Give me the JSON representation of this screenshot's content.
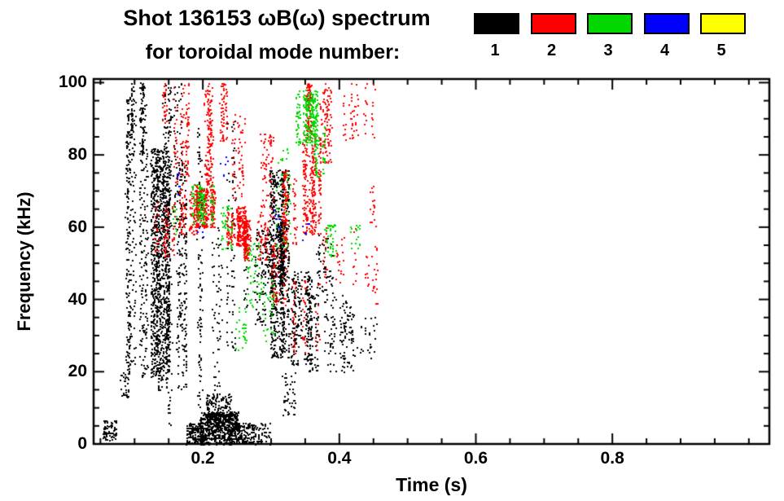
{
  "chart_data": {
    "type": "scatter",
    "title": "Shot 136153 ωB(ω) spectrum",
    "subtitle": "for toroidal mode number:",
    "xlabel": "Time (s)",
    "ylabel": "Frequency (kHz)",
    "xlim": [
      0.04,
      1.03
    ],
    "ylim": [
      0,
      101
    ],
    "grid": false,
    "x_major_ticks": [
      0.2,
      0.4,
      0.6,
      0.8
    ],
    "x_tick_labels": [
      "0.2",
      "0.4",
      "0.6",
      "0.8"
    ],
    "x_minor_step": 0.05,
    "y_major_ticks": [
      0,
      20,
      40,
      60,
      80,
      100
    ],
    "y_tick_labels": [
      "0",
      "20",
      "40",
      "60",
      "80",
      "100"
    ],
    "y_minor_step": 5,
    "legend": {
      "position": "top-right",
      "items": [
        {
          "label": "1",
          "color": "#000000"
        },
        {
          "label": "2",
          "color": "#ff0000"
        },
        {
          "label": "3",
          "color": "#00d800"
        },
        {
          "label": "4",
          "color": "#0000ff"
        },
        {
          "label": "5",
          "color": "#ffff00"
        }
      ]
    },
    "series": [
      {
        "name": "1",
        "color": "#000000",
        "clusters": [
          {
            "t": [
              0.045,
              0.075
            ],
            "f": [
              1,
              7
            ],
            "n": 70,
            "k": 4
          },
          {
            "t": [
              0.078,
              0.092
            ],
            "f": [
              13,
              20
            ],
            "n": 30
          },
          {
            "t": [
              0.085,
              0.105
            ],
            "f": [
              20,
              96
            ],
            "n": 260,
            "k": 5
          },
          {
            "t": [
              0.1,
              0.15
            ],
            "f": [
              18,
              82
            ],
            "n": 1000,
            "k": 14
          },
          {
            "t": [
              0.095,
              0.13
            ],
            "f": [
              80,
              100
            ],
            "n": 130,
            "k": 6
          },
          {
            "t": [
              0.13,
              0.175
            ],
            "f": [
              15,
              78
            ],
            "n": 380,
            "k": 8
          },
          {
            "t": [
              0.14,
              0.168
            ],
            "f": [
              60,
              100
            ],
            "n": 150,
            "k": 5
          },
          {
            "t": [
              0.148,
              0.156
            ],
            "f": [
              5,
              98
            ],
            "n": 70,
            "k": 2
          },
          {
            "t": [
              0.175,
              0.2
            ],
            "f": [
              0,
              6
            ],
            "n": 150
          },
          {
            "t": [
              0.195,
              0.252
            ],
            "f": [
              0,
              9
            ],
            "n": 650
          },
          {
            "t": [
              0.205,
              0.24
            ],
            "f": [
              6,
              14
            ],
            "n": 160
          },
          {
            "t": [
              0.25,
              0.275
            ],
            "f": [
              0,
              6
            ],
            "n": 90
          },
          {
            "t": [
              0.19,
              0.202
            ],
            "f": [
              10,
              88
            ],
            "n": 90,
            "k": 3
          },
          {
            "t": [
              0.213,
              0.227
            ],
            "f": [
              12,
              62
            ],
            "n": 60,
            "k": 3
          },
          {
            "t": [
              0.235,
              0.248
            ],
            "f": [
              25,
              90
            ],
            "n": 70,
            "k": 3
          },
          {
            "t": [
              0.26,
              0.29
            ],
            "f": [
              33,
              60
            ],
            "n": 90,
            "k": 5
          },
          {
            "t": [
              0.285,
              0.3
            ],
            "f": [
              44,
              60
            ],
            "n": 60,
            "k": 3
          },
          {
            "t": [
              0.298,
              0.325
            ],
            "f": [
              24,
              76
            ],
            "n": 600,
            "k": 8
          },
          {
            "t": [
              0.303,
              0.32
            ],
            "f": [
              44,
              62
            ],
            "n": 220,
            "k": 5
          },
          {
            "t": [
              0.325,
              0.36
            ],
            "f": [
              22,
              48
            ],
            "n": 260,
            "k": 8
          },
          {
            "t": [
              0.355,
              0.42
            ],
            "f": [
              20,
              42
            ],
            "n": 170,
            "k": 10
          },
          {
            "t": [
              0.4,
              0.455
            ],
            "f": [
              24,
              36
            ],
            "n": 45
          },
          {
            "t": [
              0.27,
              0.3
            ],
            "f": [
              0,
              6
            ],
            "n": 60
          },
          {
            "t": [
              0.315,
              0.335
            ],
            "f": [
              8,
              20
            ],
            "n": 45
          },
          {
            "t": [
              0.36,
              0.4
            ],
            "f": [
              42,
              58
            ],
            "n": 50,
            "k": 6
          }
        ]
      },
      {
        "name": "2",
        "color": "#ff0000",
        "clusters": [
          {
            "t": [
              0.128,
              0.158
            ],
            "f": [
              52,
              67
            ],
            "n": 70,
            "k": 4
          },
          {
            "t": [
              0.155,
              0.178
            ],
            "f": [
              72,
              100
            ],
            "n": 90,
            "k": 4
          },
          {
            "t": [
              0.165,
              0.19
            ],
            "f": [
              58,
              72
            ],
            "n": 110,
            "k": 5
          },
          {
            "t": [
              0.19,
              0.225
            ],
            "f": [
              60,
              71
            ],
            "n": 280,
            "k": 8
          },
          {
            "t": [
              0.225,
              0.262
            ],
            "f": [
              55,
              66
            ],
            "n": 240,
            "k": 8
          },
          {
            "t": [
              0.26,
              0.302
            ],
            "f": [
              51,
              62
            ],
            "n": 170,
            "k": 7
          },
          {
            "t": [
              0.195,
              0.218
            ],
            "f": [
              71,
              100
            ],
            "n": 130,
            "k": 4
          },
          {
            "t": [
              0.215,
              0.235
            ],
            "f": [
              84,
              100
            ],
            "n": 60,
            "k": 3
          },
          {
            "t": [
              0.24,
              0.262
            ],
            "f": [
              68,
              92
            ],
            "n": 55,
            "k": 3
          },
          {
            "t": [
              0.28,
              0.312
            ],
            "f": [
              63,
              86
            ],
            "n": 75,
            "k": 4
          },
          {
            "t": [
              0.3,
              0.335
            ],
            "f": [
              38,
              56
            ],
            "n": 70,
            "k": 4
          },
          {
            "t": [
              0.315,
              0.348
            ],
            "f": [
              55,
              76
            ],
            "n": 130,
            "k": 5
          },
          {
            "t": [
              0.345,
              0.372
            ],
            "f": [
              58,
              86
            ],
            "n": 280,
            "k": 6
          },
          {
            "t": [
              0.35,
              0.372
            ],
            "f": [
              86,
              100
            ],
            "n": 90,
            "k": 4
          },
          {
            "t": [
              0.37,
              0.4
            ],
            "f": [
              78,
              100
            ],
            "n": 95,
            "k": 5
          },
          {
            "t": [
              0.4,
              0.452
            ],
            "f": [
              84,
              100
            ],
            "n": 60,
            "k": 6
          },
          {
            "t": [
              0.33,
              0.372
            ],
            "f": [
              25,
              46
            ],
            "n": 60,
            "k": 5
          },
          {
            "t": [
              0.37,
              0.425
            ],
            "f": [
              44,
              60
            ],
            "n": 45,
            "k": 5
          },
          {
            "t": [
              0.425,
              0.455
            ],
            "f": [
              38,
              55
            ],
            "n": 25,
            "k": 3
          },
          {
            "t": [
              0.138,
              0.15
            ],
            "f": [
              88,
              100
            ],
            "n": 25,
            "k": 2
          },
          {
            "t": [
              0.44,
              0.455
            ],
            "f": [
              60,
              72
            ],
            "n": 15,
            "k": 2
          }
        ]
      },
      {
        "name": "3",
        "color": "#00d800",
        "clusters": [
          {
            "t": [
              0.168,
              0.215
            ],
            "f": [
              61,
              72
            ],
            "n": 130,
            "k": 6
          },
          {
            "t": [
              0.212,
              0.242
            ],
            "f": [
              54,
              66
            ],
            "n": 45,
            "k": 3
          },
          {
            "t": [
              0.248,
              0.282
            ],
            "f": [
              38,
              56
            ],
            "n": 45,
            "k": 4
          },
          {
            "t": [
              0.278,
              0.312
            ],
            "f": [
              28,
              46
            ],
            "n": 40,
            "k": 4
          },
          {
            "t": [
              0.298,
              0.328
            ],
            "f": [
              54,
              82
            ],
            "n": 45,
            "k": 4
          },
          {
            "t": [
              0.333,
              0.368
            ],
            "f": [
              83,
              98
            ],
            "n": 240,
            "k": 6
          },
          {
            "t": [
              0.358,
              0.378
            ],
            "f": [
              74,
              88
            ],
            "n": 55,
            "k": 3
          },
          {
            "t": [
              0.374,
              0.402
            ],
            "f": [
              51,
              62
            ],
            "n": 40,
            "k": 4
          },
          {
            "t": [
              0.4,
              0.432
            ],
            "f": [
              54,
              61
            ],
            "n": 18,
            "k": 3
          },
          {
            "t": [
              0.248,
              0.272
            ],
            "f": [
              26,
              38
            ],
            "n": 25,
            "k": 3
          },
          {
            "t": [
              0.152,
              0.162
            ],
            "f": [
              58,
              66
            ],
            "n": 12,
            "k": 1
          }
        ]
      },
      {
        "name": "4",
        "color": "#0000ff",
        "clusters": [
          {
            "t": [
              0.157,
              0.166
            ],
            "f": [
              69,
              76
            ],
            "n": 7
          },
          {
            "t": [
              0.224,
              0.236
            ],
            "f": [
              74,
              80
            ],
            "n": 6
          },
          {
            "t": [
              0.304,
              0.316
            ],
            "f": [
              59,
              66
            ],
            "n": 7
          },
          {
            "t": [
              0.344,
              0.356
            ],
            "f": [
              56,
              62
            ],
            "n": 6
          },
          {
            "t": [
              0.19,
              0.2
            ],
            "f": [
              55,
              60
            ],
            "n": 4
          }
        ]
      },
      {
        "name": "5",
        "color": "#ffff00",
        "clusters": []
      }
    ]
  }
}
